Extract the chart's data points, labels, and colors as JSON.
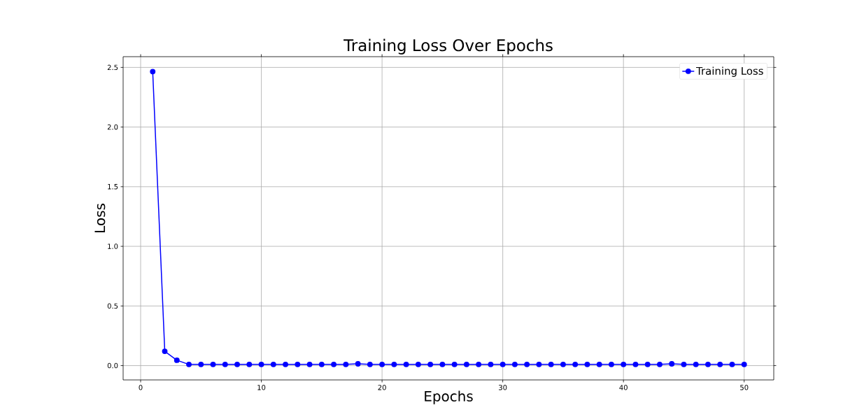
{
  "chart_data": {
    "type": "line",
    "title": "Training Loss Over Epochs",
    "xlabel": "Epochs",
    "ylabel": "Loss",
    "x": [
      1,
      2,
      3,
      4,
      5,
      6,
      7,
      8,
      9,
      10,
      11,
      12,
      13,
      14,
      15,
      16,
      17,
      18,
      19,
      20,
      21,
      22,
      23,
      24,
      25,
      26,
      27,
      28,
      29,
      30,
      31,
      32,
      33,
      34,
      35,
      36,
      37,
      38,
      39,
      40,
      41,
      42,
      43,
      44,
      45,
      46,
      47,
      48,
      49,
      50
    ],
    "series": [
      {
        "name": "Training Loss",
        "color": "#0000ff",
        "values": [
          2.465,
          0.12,
          0.045,
          0.01,
          0.01,
          0.01,
          0.01,
          0.01,
          0.01,
          0.01,
          0.01,
          0.01,
          0.01,
          0.01,
          0.01,
          0.01,
          0.01,
          0.015,
          0.01,
          0.01,
          0.01,
          0.01,
          0.01,
          0.01,
          0.01,
          0.01,
          0.01,
          0.01,
          0.01,
          0.01,
          0.01,
          0.01,
          0.01,
          0.01,
          0.01,
          0.01,
          0.01,
          0.01,
          0.01,
          0.01,
          0.01,
          0.01,
          0.01,
          0.015,
          0.01,
          0.01,
          0.01,
          0.01,
          0.01,
          0.01
        ]
      }
    ],
    "xlim": [
      -1.45,
      52.45
    ],
    "ylim": [
      -0.12,
      2.59
    ],
    "xticks": [
      0,
      10,
      20,
      30,
      40,
      50
    ],
    "yticks": [
      {
        "value": 0,
        "label": "0.0"
      },
      {
        "value": 0.5,
        "label": "0.5"
      },
      {
        "value": 1.0,
        "label": "1.0"
      },
      {
        "value": 1.5,
        "label": "1.5"
      },
      {
        "value": 2.0,
        "label": "2.0"
      },
      {
        "value": 2.5,
        "label": "2.5"
      }
    ],
    "grid": true,
    "legend": "top right",
    "marker": "circle",
    "line_style": "solid"
  }
}
